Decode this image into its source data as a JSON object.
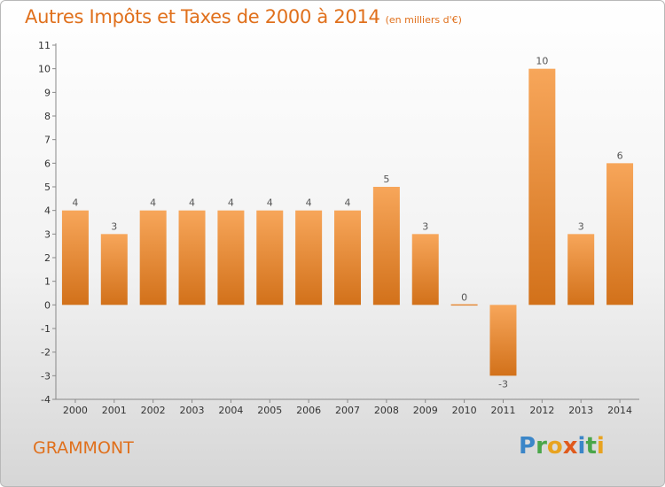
{
  "title": "Autres Impôts et Taxes de 2000 à 2014",
  "subtitle": "(en milliers d'€)",
  "town": "GRAMMONT",
  "logo": {
    "letters": [
      "P",
      "r",
      "o",
      "x",
      "i",
      "t",
      "i"
    ],
    "colors": [
      "#3b86c8",
      "#4aa64a",
      "#e8a320",
      "#e05a1c",
      "#3b86c8",
      "#4aa64a",
      "#e8a320"
    ]
  },
  "chart_data": {
    "type": "bar",
    "title": "Autres Impôts et Taxes de 2000 à 2014",
    "subtitle": "(en milliers d'€)",
    "categories": [
      "2000",
      "2001",
      "2002",
      "2003",
      "2004",
      "2005",
      "2006",
      "2007",
      "2008",
      "2009",
      "2010",
      "2011",
      "2012",
      "2013",
      "2014"
    ],
    "values": [
      4,
      3,
      4,
      4,
      4,
      4,
      4,
      4,
      5,
      3,
      0,
      -3,
      10,
      3,
      6
    ],
    "data_labels": [
      "4",
      "3",
      "4",
      "4",
      "4",
      "4",
      "4",
      "4",
      "5",
      "3",
      "0",
      "-3",
      "10",
      "3",
      "6"
    ],
    "y_ticks": [
      "-4",
      "-3",
      "-2",
      "-1",
      "0",
      "1",
      "2",
      "3",
      "4",
      "5",
      "6",
      "7",
      "8",
      "9",
      "10",
      "11"
    ],
    "ylim": [
      -4,
      11
    ],
    "grid": false,
    "colors": {
      "bar_light": "#f7a65a",
      "bar_dark": "#d2711a",
      "axis": "#888888"
    }
  }
}
